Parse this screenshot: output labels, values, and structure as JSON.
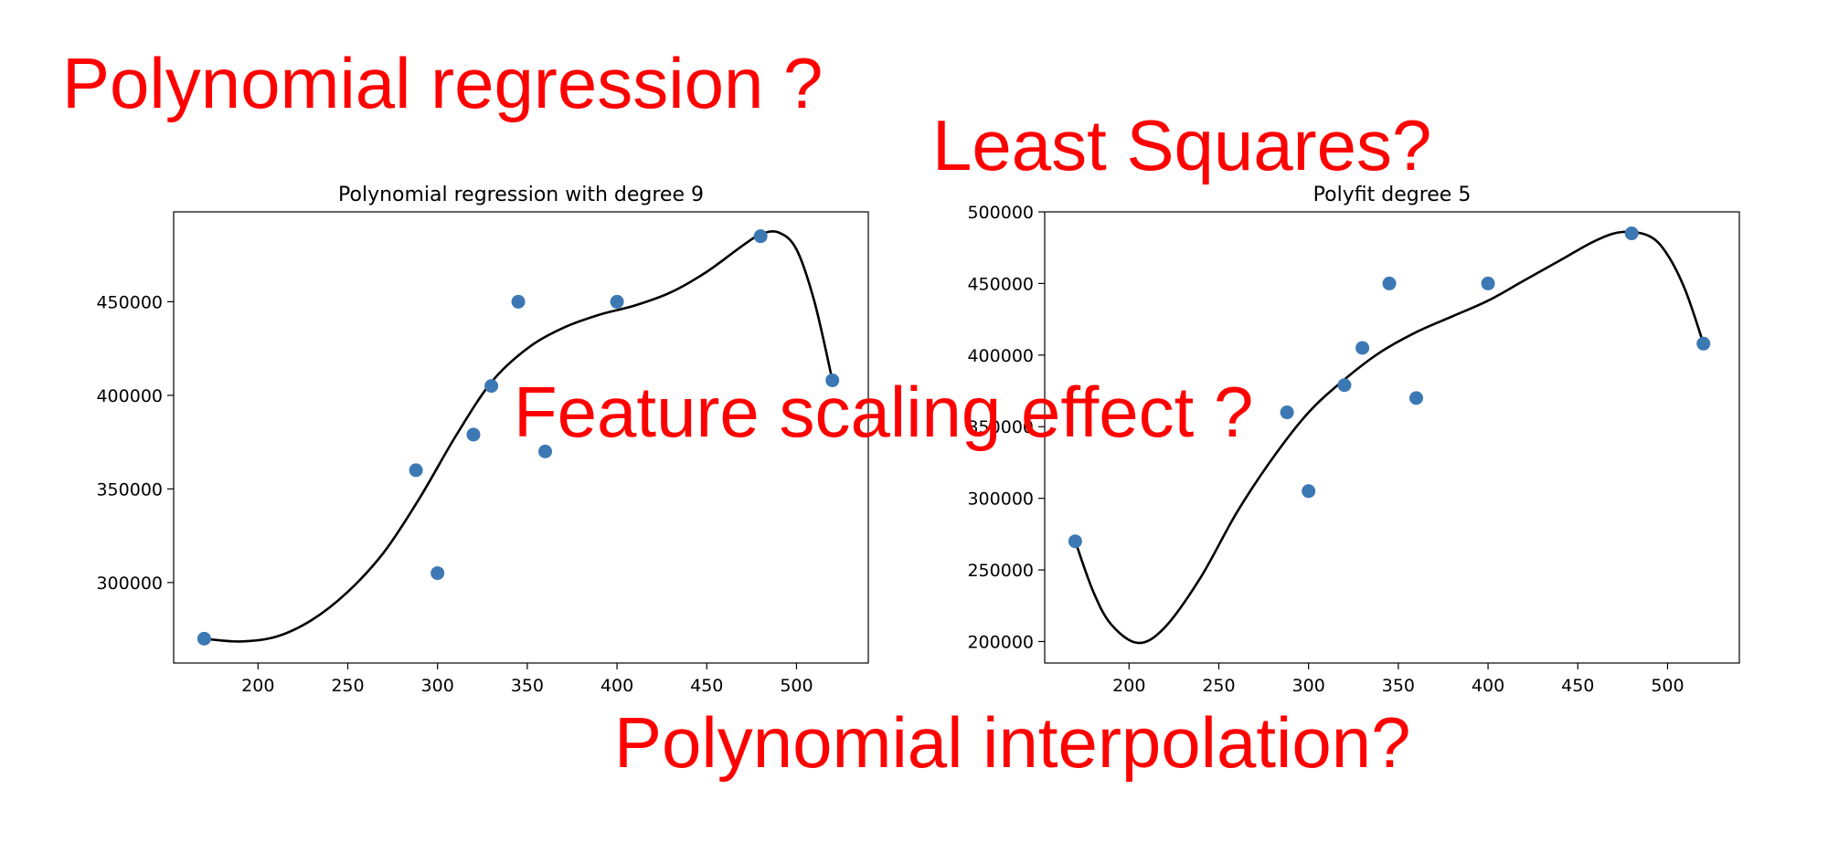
{
  "annotations": {
    "top_left": "Polynomial regression ?",
    "top_right": "Least Squares?",
    "middle": "Feature scaling effect ?",
    "bottom": "Polynomial interpolation?"
  },
  "colors": {
    "annotation": "#ff0000",
    "points": "#3c78b4",
    "curve": "#000000",
    "axis": "#000000"
  },
  "chart_data": [
    {
      "type": "scatter",
      "title": "Polynomial regression with degree 9",
      "xlabel": "",
      "ylabel": "",
      "xlim": [
        153,
        540
      ],
      "ylim": [
        257000,
        498000
      ],
      "xticks": [
        200,
        250,
        300,
        350,
        400,
        450,
        500
      ],
      "yticks": [
        300000,
        350000,
        400000,
        450000
      ],
      "grid": false,
      "series": [
        {
          "kind": "points",
          "x": [
            170,
            288,
            300,
            320,
            330,
            345,
            360,
            400,
            480,
            520
          ],
          "y": [
            270000,
            360000,
            305000,
            379000,
            405000,
            450000,
            370000,
            450000,
            485000,
            408000
          ]
        },
        {
          "kind": "fitted-curve",
          "x": [
            170,
            190,
            210,
            230,
            250,
            270,
            290,
            310,
            330,
            350,
            370,
            390,
            410,
            430,
            450,
            470,
            480,
            490,
            500,
            510,
            520
          ],
          "y": [
            270000,
            268500,
            271000,
            280000,
            295000,
            316000,
            345000,
            378000,
            407000,
            425000,
            436000,
            443000,
            448000,
            455000,
            466000,
            480000,
            486000,
            487000,
            478000,
            450000,
            408000
          ]
        }
      ]
    },
    {
      "type": "scatter",
      "title": "Polyfit degree 5",
      "xlabel": "",
      "ylabel": "",
      "xlim": [
        153,
        540
      ],
      "ylim": [
        185000,
        500000
      ],
      "xticks": [
        200,
        250,
        300,
        350,
        400,
        450,
        500
      ],
      "yticks": [
        200000,
        250000,
        300000,
        350000,
        400000,
        450000,
        500000
      ],
      "grid": false,
      "series": [
        {
          "kind": "points",
          "x": [
            170,
            288,
            300,
            320,
            330,
            345,
            360,
            400,
            480,
            520
          ],
          "y": [
            270000,
            360000,
            305000,
            379000,
            405000,
            450000,
            370000,
            450000,
            485000,
            408000
          ]
        },
        {
          "kind": "fitted-curve",
          "x": [
            170,
            180,
            190,
            205,
            220,
            240,
            260,
            280,
            300,
            320,
            340,
            360,
            380,
            400,
            420,
            440,
            460,
            475,
            490,
            500,
            510,
            520
          ],
          "y": [
            270000,
            235000,
            212000,
            199000,
            210000,
            245000,
            290000,
            328000,
            360000,
            383000,
            402000,
            416000,
            427000,
            438000,
            452000,
            466000,
            480000,
            486000,
            483000,
            470000,
            445000,
            408000
          ]
        }
      ]
    }
  ]
}
